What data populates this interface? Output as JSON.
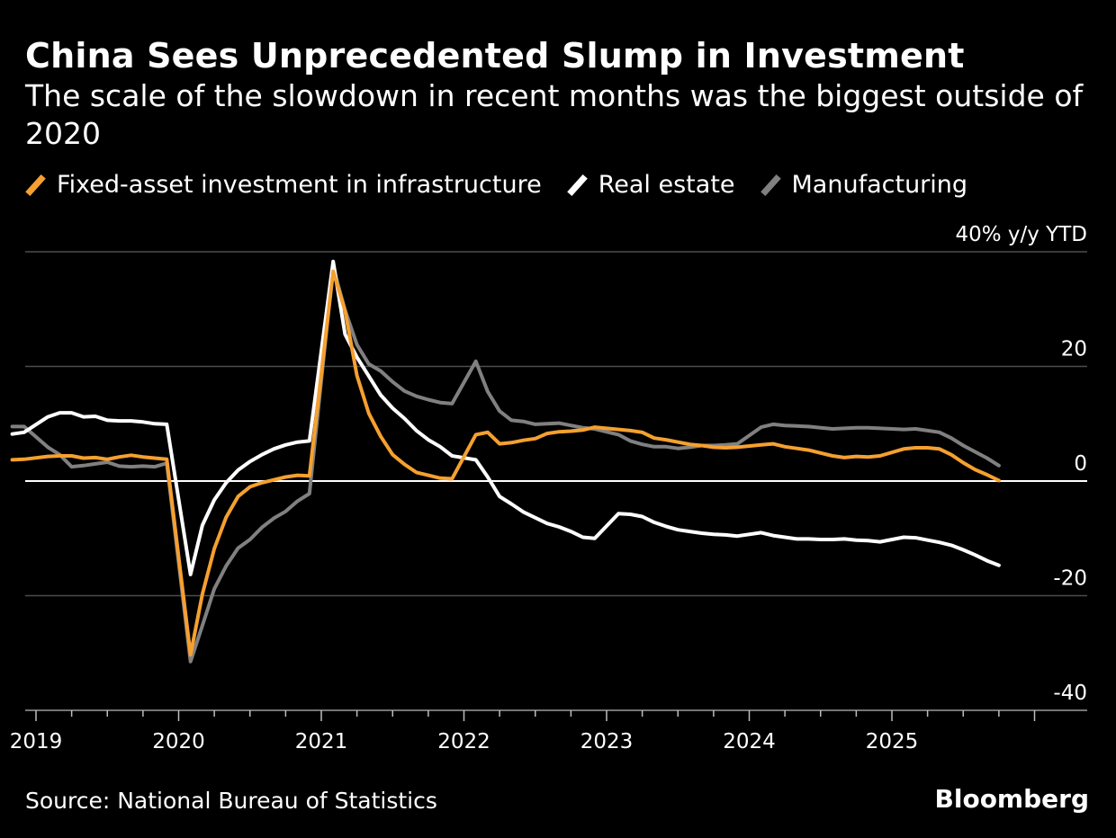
{
  "header": {
    "title": "China Sees Unprecedented Slump in Investment",
    "subtitle": "The scale of the slowdown in recent months was the biggest outside of 2020"
  },
  "footer": {
    "source": "Source: National Bureau of Statistics",
    "brand": "Bloomberg"
  },
  "colors": {
    "background": "#000000",
    "infrastructure": "#f5a030",
    "real_estate": "#ffffff",
    "manufacturing": "#808080",
    "gridline": "#4d4d4d",
    "zero_line": "#ffffff"
  },
  "chart_data": {
    "type": "line",
    "title": "China Sees Unprecedented Slump in Investment",
    "ylabel": "40% y/y YTD",
    "ylim": [
      -40,
      40
    ],
    "yticks": [
      {
        "value": 40,
        "label": "40% y/y YTD"
      },
      {
        "value": 20,
        "label": "20"
      },
      {
        "value": 0,
        "label": "0"
      },
      {
        "value": -20,
        "label": "-20"
      },
      {
        "value": -40,
        "label": "-40"
      }
    ],
    "xlim": [
      "2018-11",
      "2025-12"
    ],
    "xticks": [
      "2019",
      "2020",
      "2021",
      "2022",
      "2023",
      "2024",
      "2025"
    ],
    "grid": true,
    "legend_position": "top-left",
    "series": [
      {
        "name": "Fixed-asset investment in infrastructure",
        "color": "#f5a030",
        "points": [
          [
            "2018-11",
            3.7
          ],
          [
            "2018-12",
            3.8
          ],
          [
            "2019-02",
            4.3
          ],
          [
            "2019-03",
            4.4
          ],
          [
            "2019-04",
            4.4
          ],
          [
            "2019-05",
            4.0
          ],
          [
            "2019-06",
            4.1
          ],
          [
            "2019-07",
            3.8
          ],
          [
            "2019-08",
            4.2
          ],
          [
            "2019-09",
            4.5
          ],
          [
            "2019-10",
            4.2
          ],
          [
            "2019-11",
            4.0
          ],
          [
            "2019-12",
            3.8
          ],
          [
            "2020-02",
            -30.3
          ],
          [
            "2020-03",
            -19.7
          ],
          [
            "2020-04",
            -11.8
          ],
          [
            "2020-05",
            -6.3
          ],
          [
            "2020-06",
            -2.7
          ],
          [
            "2020-07",
            -1.0
          ],
          [
            "2020-08",
            -0.3
          ],
          [
            "2020-09",
            0.2
          ],
          [
            "2020-10",
            0.7
          ],
          [
            "2020-11",
            1.0
          ],
          [
            "2020-12",
            0.9
          ],
          [
            "2021-02",
            36.6
          ],
          [
            "2021-03",
            29.7
          ],
          [
            "2021-04",
            18.4
          ],
          [
            "2021-05",
            11.8
          ],
          [
            "2021-06",
            7.8
          ],
          [
            "2021-07",
            4.6
          ],
          [
            "2021-08",
            2.9
          ],
          [
            "2021-09",
            1.5
          ],
          [
            "2021-10",
            1.0
          ],
          [
            "2021-11",
            0.5
          ],
          [
            "2021-12",
            0.4
          ],
          [
            "2022-02",
            8.1
          ],
          [
            "2022-03",
            8.5
          ],
          [
            "2022-04",
            6.5
          ],
          [
            "2022-05",
            6.7
          ],
          [
            "2022-06",
            7.1
          ],
          [
            "2022-07",
            7.4
          ],
          [
            "2022-08",
            8.3
          ],
          [
            "2022-09",
            8.6
          ],
          [
            "2022-10",
            8.7
          ],
          [
            "2022-11",
            8.9
          ],
          [
            "2022-12",
            9.4
          ],
          [
            "2023-02",
            9.0
          ],
          [
            "2023-03",
            8.8
          ],
          [
            "2023-04",
            8.5
          ],
          [
            "2023-05",
            7.5
          ],
          [
            "2023-06",
            7.2
          ],
          [
            "2023-07",
            6.8
          ],
          [
            "2023-08",
            6.4
          ],
          [
            "2023-09",
            6.2
          ],
          [
            "2023-10",
            5.9
          ],
          [
            "2023-11",
            5.8
          ],
          [
            "2023-12",
            5.9
          ],
          [
            "2024-02",
            6.3
          ],
          [
            "2024-03",
            6.5
          ],
          [
            "2024-04",
            6.0
          ],
          [
            "2024-05",
            5.7
          ],
          [
            "2024-06",
            5.4
          ],
          [
            "2024-07",
            4.9
          ],
          [
            "2024-08",
            4.4
          ],
          [
            "2024-09",
            4.1
          ],
          [
            "2024-10",
            4.3
          ],
          [
            "2024-11",
            4.2
          ],
          [
            "2024-12",
            4.4
          ],
          [
            "2025-02",
            5.6
          ],
          [
            "2025-03",
            5.8
          ],
          [
            "2025-04",
            5.8
          ],
          [
            "2025-05",
            5.6
          ],
          [
            "2025-06",
            4.6
          ],
          [
            "2025-07",
            3.2
          ],
          [
            "2025-08",
            2.0
          ],
          [
            "2025-09",
            1.1
          ],
          [
            "2025-10",
            0.1
          ]
        ]
      },
      {
        "name": "Real estate",
        "color": "#ffffff",
        "points": [
          [
            "2018-11",
            8.2
          ],
          [
            "2018-12",
            8.5
          ],
          [
            "2019-02",
            11.2
          ],
          [
            "2019-03",
            11.9
          ],
          [
            "2019-04",
            11.9
          ],
          [
            "2019-05",
            11.2
          ],
          [
            "2019-06",
            11.3
          ],
          [
            "2019-07",
            10.6
          ],
          [
            "2019-08",
            10.5
          ],
          [
            "2019-09",
            10.5
          ],
          [
            "2019-10",
            10.3
          ],
          [
            "2019-11",
            10.0
          ],
          [
            "2019-12",
            9.9
          ],
          [
            "2020-02",
            -16.3
          ],
          [
            "2020-03",
            -7.7
          ],
          [
            "2020-04",
            -3.3
          ],
          [
            "2020-05",
            -0.3
          ],
          [
            "2020-06",
            1.9
          ],
          [
            "2020-07",
            3.4
          ],
          [
            "2020-08",
            4.6
          ],
          [
            "2020-09",
            5.6
          ],
          [
            "2020-10",
            6.3
          ],
          [
            "2020-11",
            6.8
          ],
          [
            "2020-12",
            7.0
          ],
          [
            "2021-02",
            38.3
          ],
          [
            "2021-03",
            25.6
          ],
          [
            "2021-04",
            21.6
          ],
          [
            "2021-05",
            18.3
          ],
          [
            "2021-06",
            15.0
          ],
          [
            "2021-07",
            12.7
          ],
          [
            "2021-08",
            10.9
          ],
          [
            "2021-09",
            8.8
          ],
          [
            "2021-10",
            7.2
          ],
          [
            "2021-11",
            6.0
          ],
          [
            "2021-12",
            4.4
          ],
          [
            "2022-02",
            3.7
          ],
          [
            "2022-03",
            0.7
          ],
          [
            "2022-04",
            -2.7
          ],
          [
            "2022-05",
            -4.0
          ],
          [
            "2022-06",
            -5.4
          ],
          [
            "2022-07",
            -6.4
          ],
          [
            "2022-08",
            -7.4
          ],
          [
            "2022-09",
            -8.0
          ],
          [
            "2022-10",
            -8.8
          ],
          [
            "2022-11",
            -9.8
          ],
          [
            "2022-12",
            -10.0
          ],
          [
            "2023-02",
            -5.7
          ],
          [
            "2023-03",
            -5.8
          ],
          [
            "2023-04",
            -6.2
          ],
          [
            "2023-05",
            -7.2
          ],
          [
            "2023-06",
            -7.9
          ],
          [
            "2023-07",
            -8.5
          ],
          [
            "2023-08",
            -8.8
          ],
          [
            "2023-09",
            -9.1
          ],
          [
            "2023-10",
            -9.3
          ],
          [
            "2023-11",
            -9.4
          ],
          [
            "2023-12",
            -9.6
          ],
          [
            "2024-02",
            -9.0
          ],
          [
            "2024-03",
            -9.5
          ],
          [
            "2024-04",
            -9.8
          ],
          [
            "2024-05",
            -10.1
          ],
          [
            "2024-06",
            -10.1
          ],
          [
            "2024-07",
            -10.2
          ],
          [
            "2024-08",
            -10.2
          ],
          [
            "2024-09",
            -10.1
          ],
          [
            "2024-10",
            -10.3
          ],
          [
            "2024-11",
            -10.4
          ],
          [
            "2024-12",
            -10.6
          ],
          [
            "2025-02",
            -9.8
          ],
          [
            "2025-03",
            -9.9
          ],
          [
            "2025-04",
            -10.3
          ],
          [
            "2025-05",
            -10.7
          ],
          [
            "2025-06",
            -11.2
          ],
          [
            "2025-07",
            -12.0
          ],
          [
            "2025-08",
            -12.9
          ],
          [
            "2025-09",
            -13.9
          ],
          [
            "2025-10",
            -14.7
          ]
        ]
      },
      {
        "name": "Manufacturing",
        "color": "#808080",
        "points": [
          [
            "2018-11",
            9.5
          ],
          [
            "2018-12",
            9.5
          ],
          [
            "2019-02",
            5.9
          ],
          [
            "2019-03",
            4.6
          ],
          [
            "2019-04",
            2.5
          ],
          [
            "2019-05",
            2.7
          ],
          [
            "2019-06",
            3.0
          ],
          [
            "2019-07",
            3.3
          ],
          [
            "2019-08",
            2.6
          ],
          [
            "2019-09",
            2.5
          ],
          [
            "2019-10",
            2.6
          ],
          [
            "2019-11",
            2.5
          ],
          [
            "2019-12",
            3.1
          ],
          [
            "2020-02",
            -31.5
          ],
          [
            "2020-03",
            -25.2
          ],
          [
            "2020-04",
            -18.8
          ],
          [
            "2020-05",
            -14.8
          ],
          [
            "2020-06",
            -11.7
          ],
          [
            "2020-07",
            -10.2
          ],
          [
            "2020-08",
            -8.1
          ],
          [
            "2020-09",
            -6.5
          ],
          [
            "2020-10",
            -5.3
          ],
          [
            "2020-11",
            -3.5
          ],
          [
            "2020-12",
            -2.2
          ],
          [
            "2021-02",
            37.3
          ],
          [
            "2021-03",
            29.8
          ],
          [
            "2021-04",
            23.8
          ],
          [
            "2021-05",
            20.4
          ],
          [
            "2021-06",
            19.2
          ],
          [
            "2021-07",
            17.3
          ],
          [
            "2021-08",
            15.7
          ],
          [
            "2021-09",
            14.8
          ],
          [
            "2021-10",
            14.2
          ],
          [
            "2021-11",
            13.7
          ],
          [
            "2021-12",
            13.5
          ],
          [
            "2022-02",
            20.9
          ],
          [
            "2022-03",
            15.6
          ],
          [
            "2022-04",
            12.2
          ],
          [
            "2022-05",
            10.6
          ],
          [
            "2022-06",
            10.4
          ],
          [
            "2022-07",
            9.9
          ],
          [
            "2022-08",
            10.0
          ],
          [
            "2022-09",
            10.1
          ],
          [
            "2022-10",
            9.7
          ],
          [
            "2022-11",
            9.3
          ],
          [
            "2022-12",
            9.1
          ],
          [
            "2023-02",
            8.1
          ],
          [
            "2023-03",
            7.0
          ],
          [
            "2023-04",
            6.4
          ],
          [
            "2023-05",
            6.0
          ],
          [
            "2023-06",
            6.0
          ],
          [
            "2023-07",
            5.7
          ],
          [
            "2023-08",
            5.9
          ],
          [
            "2023-09",
            6.2
          ],
          [
            "2023-10",
            6.2
          ],
          [
            "2023-11",
            6.3
          ],
          [
            "2023-12",
            6.5
          ],
          [
            "2024-02",
            9.4
          ],
          [
            "2024-03",
            9.9
          ],
          [
            "2024-04",
            9.7
          ],
          [
            "2024-05",
            9.6
          ],
          [
            "2024-06",
            9.5
          ],
          [
            "2024-07",
            9.3
          ],
          [
            "2024-08",
            9.1
          ],
          [
            "2024-09",
            9.2
          ],
          [
            "2024-10",
            9.3
          ],
          [
            "2024-11",
            9.3
          ],
          [
            "2024-12",
            9.2
          ],
          [
            "2025-02",
            9.0
          ],
          [
            "2025-03",
            9.1
          ],
          [
            "2025-04",
            8.8
          ],
          [
            "2025-05",
            8.5
          ],
          [
            "2025-06",
            7.5
          ],
          [
            "2025-07",
            6.2
          ],
          [
            "2025-08",
            5.1
          ],
          [
            "2025-09",
            4.0
          ],
          [
            "2025-10",
            2.7
          ]
        ]
      }
    ]
  }
}
